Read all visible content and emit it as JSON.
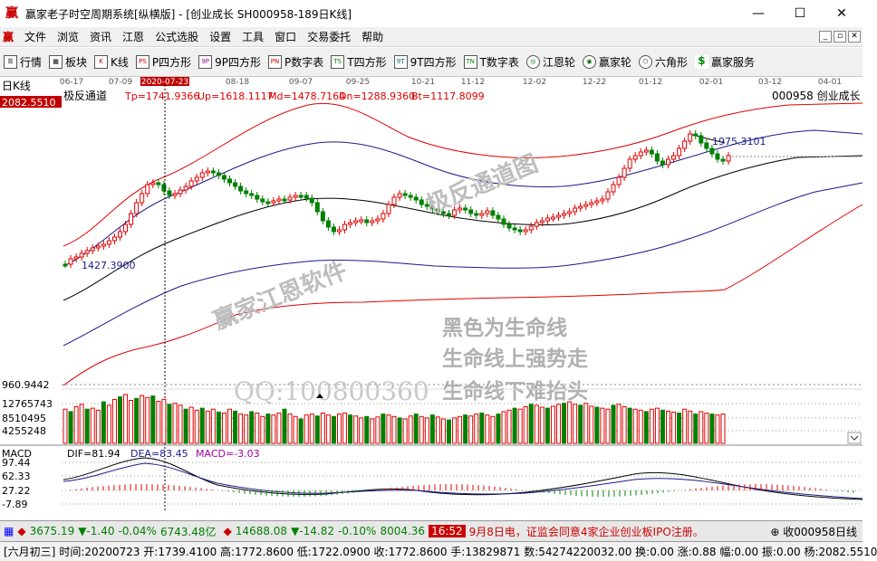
{
  "window": {
    "title": "赢家老子时空周期系统[纵横版] - [创业成长  SH000958-189日K线]",
    "logo_char": "赢",
    "min_glyph": "—",
    "max_glyph": "☐",
    "close_glyph": "✕"
  },
  "menu": {
    "logo_char": "赢",
    "items": [
      "文件",
      "浏览",
      "资讯",
      "江恩",
      "公式选股",
      "设置",
      "工具",
      "窗口",
      "交易委托",
      "帮助"
    ],
    "mdi_buttons": [
      "_",
      "▫",
      "✕"
    ]
  },
  "toolbar": {
    "items": [
      {
        "icon": "list-icon",
        "glyph": "☰",
        "label": "行情"
      },
      {
        "icon": "blocks-icon",
        "glyph": "▦",
        "label": "板块"
      },
      {
        "icon": "kline-icon",
        "glyph": "K",
        "label": "K线"
      },
      {
        "icon": "ps-icon",
        "glyph": "PS",
        "label": "P四方形"
      },
      {
        "icon": "9p-icon",
        "glyph": "9P",
        "label": "9P四方形"
      },
      {
        "icon": "pn-icon",
        "glyph": "PN",
        "label": "P数字表"
      },
      {
        "icon": "ts-icon",
        "glyph": "TS",
        "label": "T四方形"
      },
      {
        "icon": "9t-icon",
        "glyph": "9T",
        "label": "9T四方形"
      },
      {
        "icon": "tn-icon",
        "glyph": "TN",
        "label": "T数字表"
      },
      {
        "icon": "gann-wheel-icon",
        "glyph": "◎",
        "label": "江恩轮"
      },
      {
        "icon": "winner-wheel-icon",
        "glyph": "◉",
        "label": "赢家轮"
      },
      {
        "icon": "hexagon-icon",
        "glyph": "⬡",
        "label": "六角形"
      },
      {
        "icon": "dollar-icon",
        "glyph": "$",
        "label": "赢家服务"
      }
    ]
  },
  "chart": {
    "period_label": "日K线",
    "dates": [
      "06-17",
      "07-09",
      "2020-07-23",
      "08-18",
      "09-07",
      "09-25",
      "10-21",
      "11-12",
      "12-02",
      "12-22",
      "01-12",
      "02-01",
      "03-12",
      "04-01"
    ],
    "selected_date": "2020-07-23",
    "price_readout": "2082.5510",
    "indicator_name": "极反通道",
    "indicator_values": [
      {
        "text": "Tp=1741.9366",
        "color": "#e00000"
      },
      {
        "text": "Up=1618.1117",
        "color": "#e00000"
      },
      {
        "text": "Md=1478.7164",
        "color": "#e00000"
      },
      {
        "text": "Dn=1288.9360",
        "color": "#e00000"
      },
      {
        "text": "Bt=1117.8099",
        "color": "#e00000"
      }
    ],
    "code_name": "000958  创业成长",
    "high_label": "1975.3101",
    "low_label": "1427.3900",
    "price_axis_min": "960.9442",
    "volume_ticks": [
      "12765743",
      "8510495",
      "4255248"
    ],
    "watermarks": {
      "brand": "赢家江恩软件",
      "diag": "极反通道图",
      "qq": "QQ:100800360",
      "line1": "黑色为生命线",
      "line2": "生命线上强势走",
      "line3": "生命线下难抬头"
    },
    "macd": {
      "name": "MACD",
      "dif": "DIF=81.94",
      "dea": "DEA=83.45",
      "macd": "MACD=-3.03",
      "ticks": [
        "97.44",
        "62.33",
        "27.22",
        "-7.89"
      ]
    }
  },
  "status1": {
    "sh_index": "3675.19",
    "sh_change": "▼-1.40",
    "sh_pct": "-0.04%",
    "sh_amount": "6743.48亿",
    "sz_index": "14688.08",
    "sz_change": "▼-14.82",
    "sz_pct": "-0.10%",
    "sz_amount": "8004.36",
    "news_time": "16:52",
    "news_text": "9月8日电，证监会同意4家企业创业板IPO注册。",
    "right_text": "收000958日线"
  },
  "status2": {
    "lunar": "[六月初三]",
    "text": "时间:20200723 开:1739.4100 高:1772.8600 低:1722.0900 收:1772.8600 手:13829871 数:54274220032.00 换:0.00 涨:0.88 幅:0.00 振:0.00 杨:2082.5510"
  },
  "colors": {
    "up": "#e00000",
    "down": "#008000",
    "channel_outer": "#e00000",
    "channel_inner": "#1a1a8c",
    "life_line": "#000000",
    "accent": "#c00000"
  }
}
